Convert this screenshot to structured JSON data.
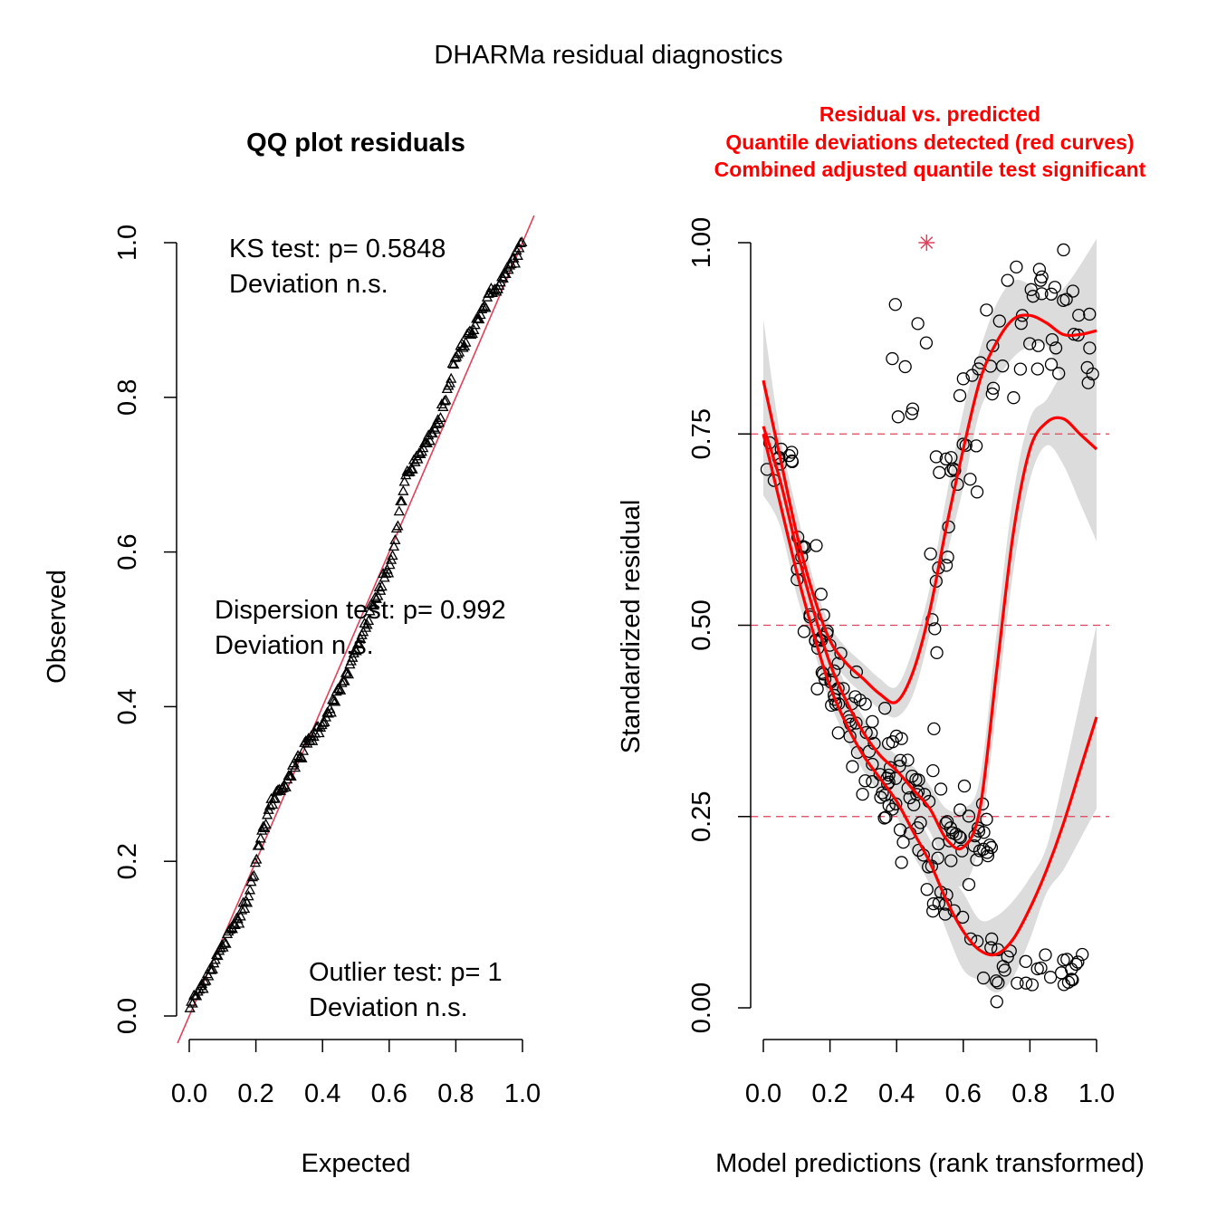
{
  "main_title": "DHARMa residual diagnostics",
  "chart_data": [
    {
      "type": "scatter",
      "panel": "left",
      "title": "QQ plot residuals",
      "xlabel": "Expected",
      "ylabel": "Observed",
      "xlim": [
        0,
        1
      ],
      "ylim": [
        0,
        1
      ],
      "x_ticks": [
        "0.0",
        "0.2",
        "0.4",
        "0.6",
        "0.8",
        "1.0"
      ],
      "y_ticks": [
        "0.0",
        "0.2",
        "0.4",
        "0.6",
        "0.8",
        "1.0"
      ],
      "marker": "triangle",
      "reference_line": {
        "slope": 1,
        "intercept": 0,
        "color": "#e0405a"
      },
      "annotations": {
        "ks_line1": "KS test: p= 0.5848",
        "ks_line2": "Deviation  n.s.",
        "dispersion_line1": "Dispersion test: p= 0.992",
        "dispersion_line2": "Deviation  n.s.",
        "outlier_line1": "Outlier test: p= 1",
        "outlier_line2": "Deviation  n.s."
      },
      "qq_knots": {
        "expected": [
          0.0,
          0.05,
          0.1,
          0.15,
          0.18,
          0.2,
          0.22,
          0.25,
          0.3,
          0.35,
          0.4,
          0.45,
          0.5,
          0.55,
          0.6,
          0.62,
          0.65,
          0.7,
          0.75,
          0.78,
          0.8,
          0.85,
          0.9,
          0.95,
          1.0
        ],
        "observed": [
          0.01,
          0.05,
          0.09,
          0.13,
          0.16,
          0.2,
          0.24,
          0.28,
          0.31,
          0.35,
          0.38,
          0.42,
          0.47,
          0.53,
          0.58,
          0.62,
          0.7,
          0.73,
          0.77,
          0.82,
          0.85,
          0.89,
          0.93,
          0.96,
          1.0
        ]
      },
      "n_points": 250
    },
    {
      "type": "scatter",
      "panel": "right",
      "title_lines": [
        "Residual vs. predicted",
        "Quantile deviations detected (red curves)",
        "Combined adjusted quantile test significant"
      ],
      "xlabel": "Model predictions (rank transformed)",
      "ylabel": "Standardized residual",
      "xlim": [
        0,
        1
      ],
      "ylim": [
        0,
        1
      ],
      "x_ticks": [
        "0.0",
        "0.2",
        "0.4",
        "0.6",
        "0.8",
        "1.0"
      ],
      "y_ticks": [
        "0.00",
        "0.25",
        "0.50",
        "0.75",
        "1.00"
      ],
      "h_lines": [
        0.25,
        0.5,
        0.75
      ],
      "marker": "circle",
      "outlier": {
        "x": 0.49,
        "y": 1.0,
        "marker": "star",
        "color": "#e0405a"
      },
      "quantile_curves": [
        {
          "name": "0.75",
          "x": [
            0.0,
            0.05,
            0.1,
            0.15,
            0.2,
            0.25,
            0.3,
            0.35,
            0.4,
            0.45,
            0.5,
            0.55,
            0.6,
            0.65,
            0.7,
            0.75,
            0.8,
            0.85,
            0.9,
            0.95,
            1.0
          ],
          "y": [
            0.82,
            0.72,
            0.62,
            0.54,
            0.48,
            0.45,
            0.43,
            0.41,
            0.4,
            0.44,
            0.52,
            0.63,
            0.73,
            0.82,
            0.87,
            0.9,
            0.905,
            0.895,
            0.88,
            0.88,
            0.885
          ]
        },
        {
          "name": "0.5",
          "x": [
            0.0,
            0.05,
            0.1,
            0.15,
            0.2,
            0.25,
            0.3,
            0.35,
            0.4,
            0.45,
            0.5,
            0.55,
            0.6,
            0.65,
            0.7,
            0.75,
            0.8,
            0.85,
            0.9,
            0.95,
            1.0
          ],
          "y": [
            0.76,
            0.69,
            0.6,
            0.52,
            0.45,
            0.4,
            0.36,
            0.33,
            0.31,
            0.285,
            0.26,
            0.22,
            0.21,
            0.26,
            0.44,
            0.62,
            0.73,
            0.765,
            0.77,
            0.75,
            0.73
          ]
        },
        {
          "name": "0.25",
          "x": [
            0.0,
            0.05,
            0.1,
            0.15,
            0.2,
            0.25,
            0.3,
            0.35,
            0.4,
            0.45,
            0.5,
            0.55,
            0.6,
            0.65,
            0.7,
            0.75,
            0.8,
            0.85,
            0.9,
            0.95,
            1.0
          ],
          "y": [
            0.75,
            0.66,
            0.57,
            0.49,
            0.42,
            0.37,
            0.33,
            0.3,
            0.27,
            0.23,
            0.19,
            0.14,
            0.1,
            0.075,
            0.07,
            0.09,
            0.13,
            0.18,
            0.24,
            0.31,
            0.38
          ]
        }
      ],
      "band_widths": [
        0.08,
        0.03,
        0.03,
        0.02,
        0.02,
        0.02,
        0.02,
        0.02,
        0.02,
        0.03,
        0.03,
        0.04,
        0.05,
        0.04,
        0.05,
        0.05,
        0.04,
        0.03,
        0.06,
        0.09,
        0.12
      ],
      "point_clusters": [
        {
          "name": "upper",
          "x_range": [
            0.38,
            1.0
          ],
          "n": 75
        },
        {
          "name": "middle",
          "x_range": [
            0.0,
            0.7
          ],
          "n": 120
        },
        {
          "name": "lower",
          "x_range": [
            0.15,
            0.97
          ],
          "n": 70
        }
      ]
    }
  ]
}
